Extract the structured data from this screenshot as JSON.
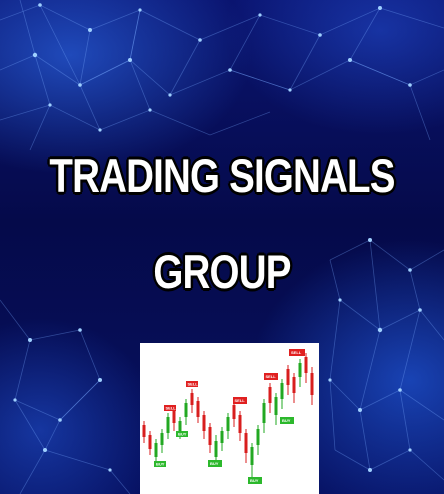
{
  "headline": {
    "line1": "TRADING SIGNALS",
    "line2": "GROUP"
  },
  "colors": {
    "background_dark": "#050a4a",
    "background_glow": "#3278ff",
    "headline_text": "#ffffff",
    "headline_outline": "#000000",
    "candle_up": "#22a822",
    "candle_down": "#d81e1e",
    "sell_tag": "#e02020",
    "buy_tag": "#2cb82c"
  },
  "chart_image": {
    "sell_tag": "SELL",
    "buy_tag": "BUY"
  }
}
